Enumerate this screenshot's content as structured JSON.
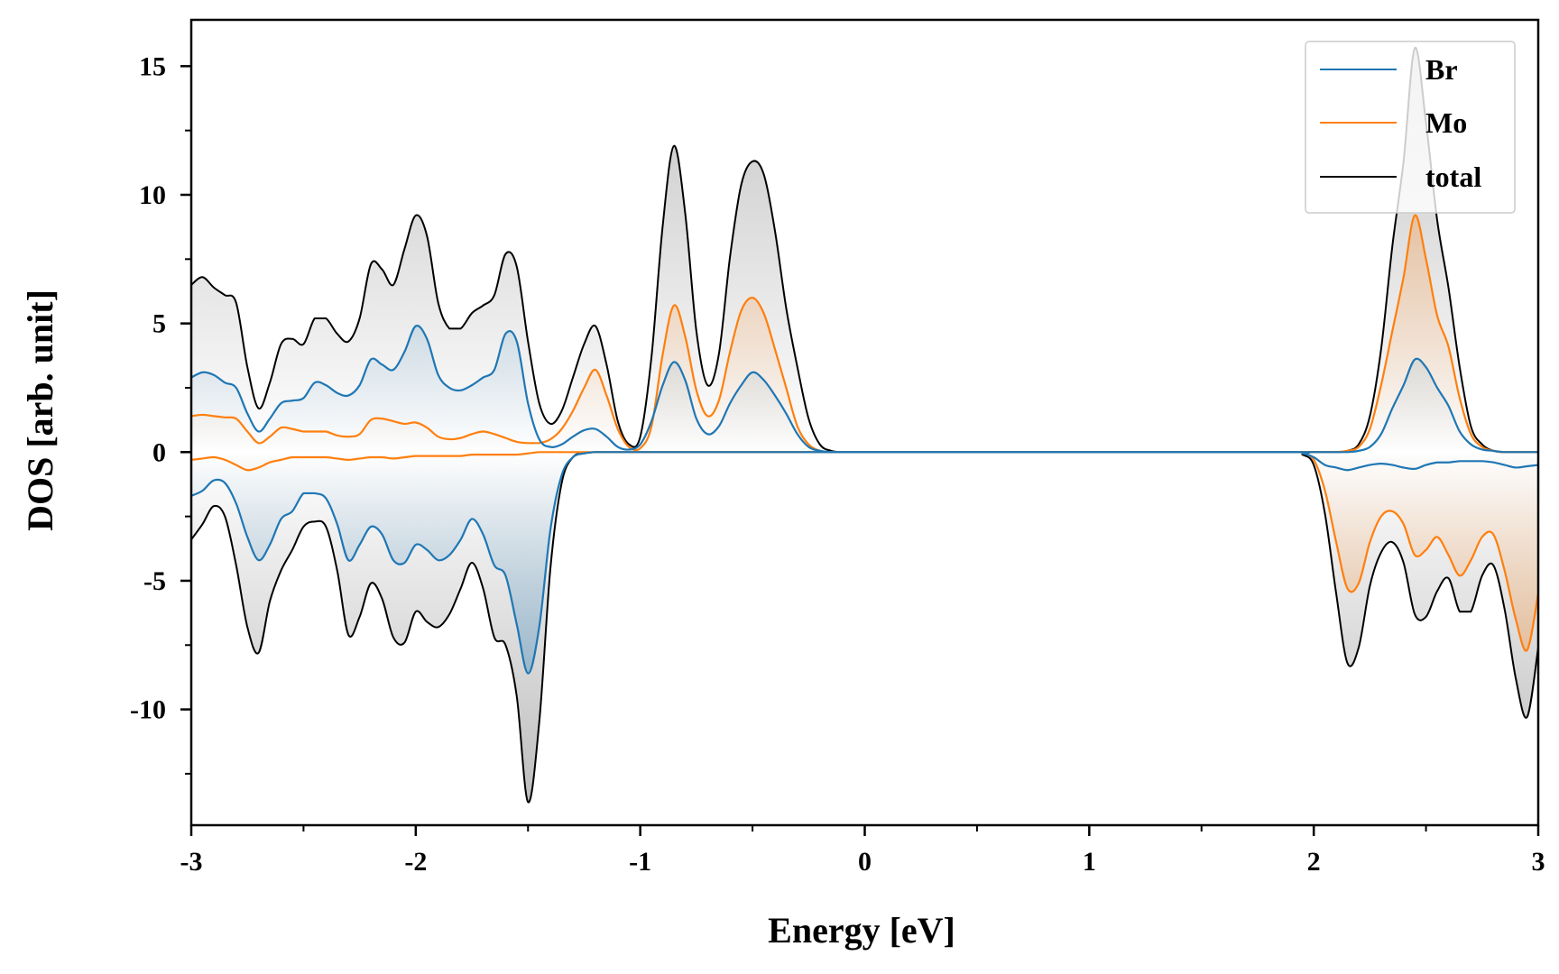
{
  "chart_data": {
    "type": "line",
    "xlabel": "Energy [eV]",
    "ylabel": "DOS [arb. unit]",
    "xlim": [
      -3,
      3
    ],
    "ylim": [
      -14.5,
      16.8
    ],
    "x_ticks": [
      -3,
      -2,
      -1,
      0,
      1,
      2,
      3
    ],
    "x_tick_labels": [
      "-3",
      "-2",
      "-1",
      "0",
      "1",
      "2",
      "3"
    ],
    "y_ticks": [
      -10,
      -5,
      0,
      5,
      10,
      15
    ],
    "y_tick_labels": [
      "-10",
      "-5",
      "0",
      "5",
      "10",
      "15"
    ],
    "grid": false,
    "legend": {
      "position": "top-right",
      "entries": [
        "Br",
        "Mo",
        "total"
      ]
    },
    "colors": {
      "Br": "#1f77b4",
      "Mo": "#ff7f0e",
      "total": "#000000"
    },
    "x": [
      -3.0,
      -2.95,
      -2.9,
      -2.85,
      -2.8,
      -2.75,
      -2.7,
      -2.65,
      -2.6,
      -2.55,
      -2.5,
      -2.45,
      -2.4,
      -2.35,
      -2.3,
      -2.25,
      -2.2,
      -2.15,
      -2.1,
      -2.05,
      -2.0,
      -1.95,
      -1.9,
      -1.85,
      -1.8,
      -1.75,
      -1.7,
      -1.65,
      -1.6,
      -1.55,
      -1.5,
      -1.45,
      -1.4,
      -1.35,
      -1.3,
      -1.25,
      -1.2,
      -1.15,
      -1.1,
      -1.05,
      -1.0,
      -0.95,
      -0.9,
      -0.85,
      -0.8,
      -0.75,
      -0.7,
      -0.65,
      -0.6,
      -0.55,
      -0.5,
      -0.45,
      -0.4,
      -0.35,
      -0.3,
      -0.25,
      -0.2,
      -0.15,
      -0.1,
      0.0,
      1.0,
      1.9,
      1.95,
      2.0,
      2.05,
      2.1,
      2.15,
      2.2,
      2.25,
      2.3,
      2.35,
      2.4,
      2.45,
      2.5,
      2.55,
      2.6,
      2.65,
      2.7,
      2.75,
      2.8,
      2.85,
      2.9,
      2.95,
      3.0
    ],
    "series": [
      {
        "name": "Br",
        "values": [
          2.9,
          3.1,
          3.0,
          2.7,
          2.5,
          1.5,
          0.8,
          1.3,
          1.9,
          2.0,
          2.1,
          2.7,
          2.6,
          2.3,
          2.2,
          2.6,
          3.6,
          3.4,
          3.2,
          3.9,
          4.9,
          4.4,
          3.0,
          2.5,
          2.4,
          2.6,
          2.9,
          3.2,
          4.6,
          4.3,
          1.9,
          0.5,
          0.2,
          0.3,
          0.6,
          0.85,
          0.9,
          0.6,
          0.2,
          0.1,
          0.3,
          1.2,
          2.6,
          3.5,
          2.8,
          1.3,
          0.7,
          1.0,
          1.9,
          2.6,
          3.1,
          2.8,
          2.2,
          1.5,
          0.7,
          0.2,
          0.05,
          0.0,
          0.0,
          0.0,
          0.0,
          0.0,
          0.0,
          0.0,
          0.0,
          0.0,
          0.0,
          0.05,
          0.2,
          0.7,
          1.7,
          2.6,
          3.6,
          3.3,
          2.5,
          1.8,
          0.8,
          0.3,
          0.1,
          0.05,
          0.0,
          0.0,
          0.0,
          0.0
        ]
      },
      {
        "name": "Mo",
        "values": [
          1.4,
          1.45,
          1.4,
          1.35,
          1.3,
          0.8,
          0.35,
          0.6,
          0.95,
          0.9,
          0.8,
          0.8,
          0.8,
          0.65,
          0.6,
          0.7,
          1.25,
          1.3,
          1.2,
          1.1,
          1.15,
          0.95,
          0.6,
          0.5,
          0.55,
          0.7,
          0.8,
          0.7,
          0.55,
          0.4,
          0.35,
          0.35,
          0.5,
          0.9,
          1.6,
          2.5,
          3.2,
          2.2,
          0.9,
          0.2,
          0.15,
          1.0,
          3.8,
          5.7,
          4.5,
          2.4,
          1.4,
          2.0,
          3.9,
          5.5,
          6.0,
          5.4,
          4.0,
          2.5,
          1.0,
          0.3,
          0.05,
          0.0,
          0.0,
          0.0,
          0.0,
          0.0,
          0.0,
          0.0,
          0.0,
          0.0,
          0.05,
          0.2,
          0.9,
          2.6,
          4.7,
          6.8,
          9.2,
          7.5,
          5.3,
          4.1,
          2.1,
          0.7,
          0.2,
          0.05,
          0.0,
          0.0,
          0.0,
          0.0
        ]
      },
      {
        "name": "total",
        "values": [
          6.5,
          6.8,
          6.4,
          6.1,
          5.8,
          3.3,
          1.7,
          2.7,
          4.2,
          4.4,
          4.2,
          5.2,
          5.2,
          4.6,
          4.3,
          5.2,
          7.3,
          7.1,
          6.5,
          7.9,
          9.2,
          8.4,
          5.8,
          4.8,
          4.8,
          5.4,
          5.7,
          6.1,
          7.7,
          7.2,
          4.3,
          1.9,
          1.1,
          1.6,
          2.9,
          4.2,
          4.9,
          3.4,
          1.2,
          0.3,
          0.6,
          3.7,
          8.8,
          11.9,
          9.3,
          4.7,
          2.6,
          3.8,
          7.6,
          10.4,
          11.3,
          10.8,
          8.6,
          5.6,
          3.3,
          1.3,
          0.3,
          0.05,
          0.0,
          0.0,
          0.0,
          0.0,
          0.0,
          0.0,
          0.0,
          0.0,
          0.05,
          0.3,
          1.4,
          4.0,
          8.0,
          11.3,
          15.7,
          12.8,
          9.0,
          6.4,
          3.3,
          1.0,
          0.3,
          0.05,
          0.0,
          0.0,
          0.0,
          0.0
        ]
      },
      {
        "name": "Br-down",
        "values": [
          -1.7,
          -1.5,
          -1.1,
          -1.2,
          -2.0,
          -3.3,
          -4.2,
          -3.6,
          -2.6,
          -2.3,
          -1.6,
          -1.6,
          -1.8,
          -2.8,
          -4.2,
          -3.6,
          -2.9,
          -3.2,
          -4.2,
          -4.3,
          -3.6,
          -3.8,
          -4.2,
          -4.0,
          -3.4,
          -2.6,
          -3.2,
          -4.4,
          -4.8,
          -6.7,
          -8.6,
          -6.8,
          -3.0,
          -0.9,
          -0.2,
          -0.05,
          0.0,
          0.0,
          0.0,
          0.0,
          0.0,
          0.0,
          0.0,
          0.0,
          0.0,
          0.0,
          0.0,
          0.0,
          0.0,
          0.0,
          0.0,
          0.0,
          0.0,
          0.0,
          0.0,
          0.0,
          0.0,
          0.0,
          0.0,
          0.0,
          0.0,
          0.0,
          -0.05,
          -0.2,
          -0.5,
          -0.6,
          -0.7,
          -0.6,
          -0.5,
          -0.45,
          -0.5,
          -0.6,
          -0.65,
          -0.5,
          -0.4,
          -0.4,
          -0.35,
          -0.35,
          -0.35,
          -0.4,
          -0.5,
          -0.6,
          -0.55,
          -0.5
        ]
      },
      {
        "name": "Mo-down",
        "values": [
          -0.3,
          -0.25,
          -0.2,
          -0.3,
          -0.5,
          -0.7,
          -0.6,
          -0.4,
          -0.3,
          -0.2,
          -0.2,
          -0.2,
          -0.2,
          -0.25,
          -0.3,
          -0.25,
          -0.2,
          -0.2,
          -0.25,
          -0.2,
          -0.15,
          -0.15,
          -0.15,
          -0.15,
          -0.15,
          -0.1,
          -0.1,
          -0.1,
          -0.1,
          -0.1,
          -0.05,
          0.0,
          0.0,
          0.0,
          0.0,
          0.0,
          0.0,
          0.0,
          0.0,
          0.0,
          0.0,
          0.0,
          0.0,
          0.0,
          0.0,
          0.0,
          0.0,
          0.0,
          0.0,
          0.0,
          0.0,
          0.0,
          0.0,
          0.0,
          0.0,
          0.0,
          0.0,
          0.0,
          0.0,
          0.0,
          0.0,
          0.0,
          -0.05,
          -0.3,
          -1.5,
          -3.5,
          -5.3,
          -5.1,
          -3.5,
          -2.5,
          -2.3,
          -2.8,
          -4.0,
          -3.8,
          -3.3,
          -4.0,
          -4.8,
          -4.2,
          -3.3,
          -3.2,
          -4.6,
          -6.5,
          -7.7,
          -5.5
        ]
      },
      {
        "name": "total-down",
        "values": [
          -3.4,
          -2.8,
          -2.1,
          -2.5,
          -4.4,
          -6.8,
          -7.8,
          -5.8,
          -4.6,
          -3.8,
          -2.9,
          -2.7,
          -2.9,
          -4.6,
          -7.1,
          -6.4,
          -5.1,
          -5.7,
          -7.2,
          -7.4,
          -6.2,
          -6.6,
          -6.8,
          -6.3,
          -5.3,
          -4.3,
          -5.3,
          -7.2,
          -7.5,
          -9.5,
          -13.6,
          -10.5,
          -4.5,
          -1.2,
          -0.2,
          -0.05,
          0.0,
          0.0,
          0.0,
          0.0,
          0.0,
          0.0,
          0.0,
          0.0,
          0.0,
          0.0,
          0.0,
          0.0,
          0.0,
          0.0,
          0.0,
          0.0,
          0.0,
          0.0,
          0.0,
          0.0,
          0.0,
          0.0,
          0.0,
          0.0,
          0.0,
          0.0,
          -0.1,
          -0.5,
          -2.4,
          -5.5,
          -8.2,
          -7.6,
          -5.2,
          -3.9,
          -3.5,
          -4.3,
          -6.3,
          -6.4,
          -5.4,
          -4.9,
          -6.2,
          -6.2,
          -4.8,
          -4.4,
          -6.1,
          -8.8,
          -10.3,
          -7.6
        ]
      }
    ]
  }
}
